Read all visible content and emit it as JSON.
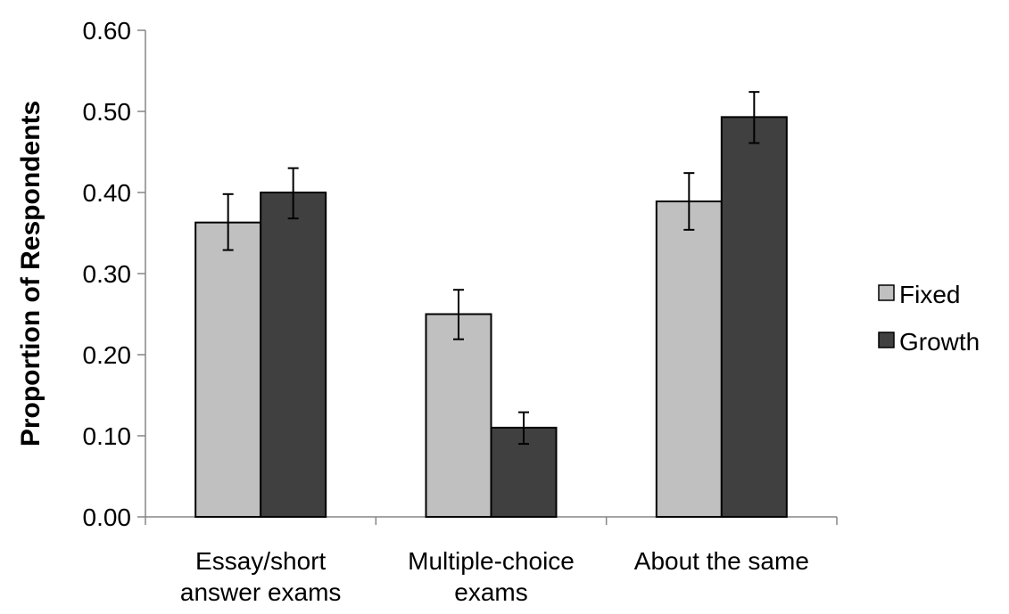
{
  "chart_data": {
    "type": "bar",
    "title": "",
    "xlabel": "",
    "ylabel": "Proportion of Respondents",
    "ylim": [
      0,
      0.6
    ],
    "yticks": [
      "0.00",
      "0.10",
      "0.20",
      "0.30",
      "0.40",
      "0.50",
      "0.60"
    ],
    "tick_values": [
      0,
      0.1,
      0.2,
      0.3,
      0.4,
      0.5,
      0.6
    ],
    "categories": [
      [
        "Essay/short",
        "answer exams"
      ],
      [
        "Multiple-choice",
        "exams"
      ],
      [
        "About the same"
      ]
    ],
    "series": [
      {
        "name": "Fixed",
        "color": "#c0c0c0",
        "values": [
          0.363,
          0.25,
          0.389
        ],
        "error_low": [
          0.329,
          0.219,
          0.354
        ],
        "error_high": [
          0.398,
          0.28,
          0.424
        ]
      },
      {
        "name": "Growth",
        "color": "#404040",
        "values": [
          0.4,
          0.11,
          0.493
        ],
        "error_low": [
          0.368,
          0.09,
          0.461
        ],
        "error_high": [
          0.43,
          0.129,
          0.524
        ]
      }
    ],
    "grid": false,
    "legend_position": "right"
  }
}
